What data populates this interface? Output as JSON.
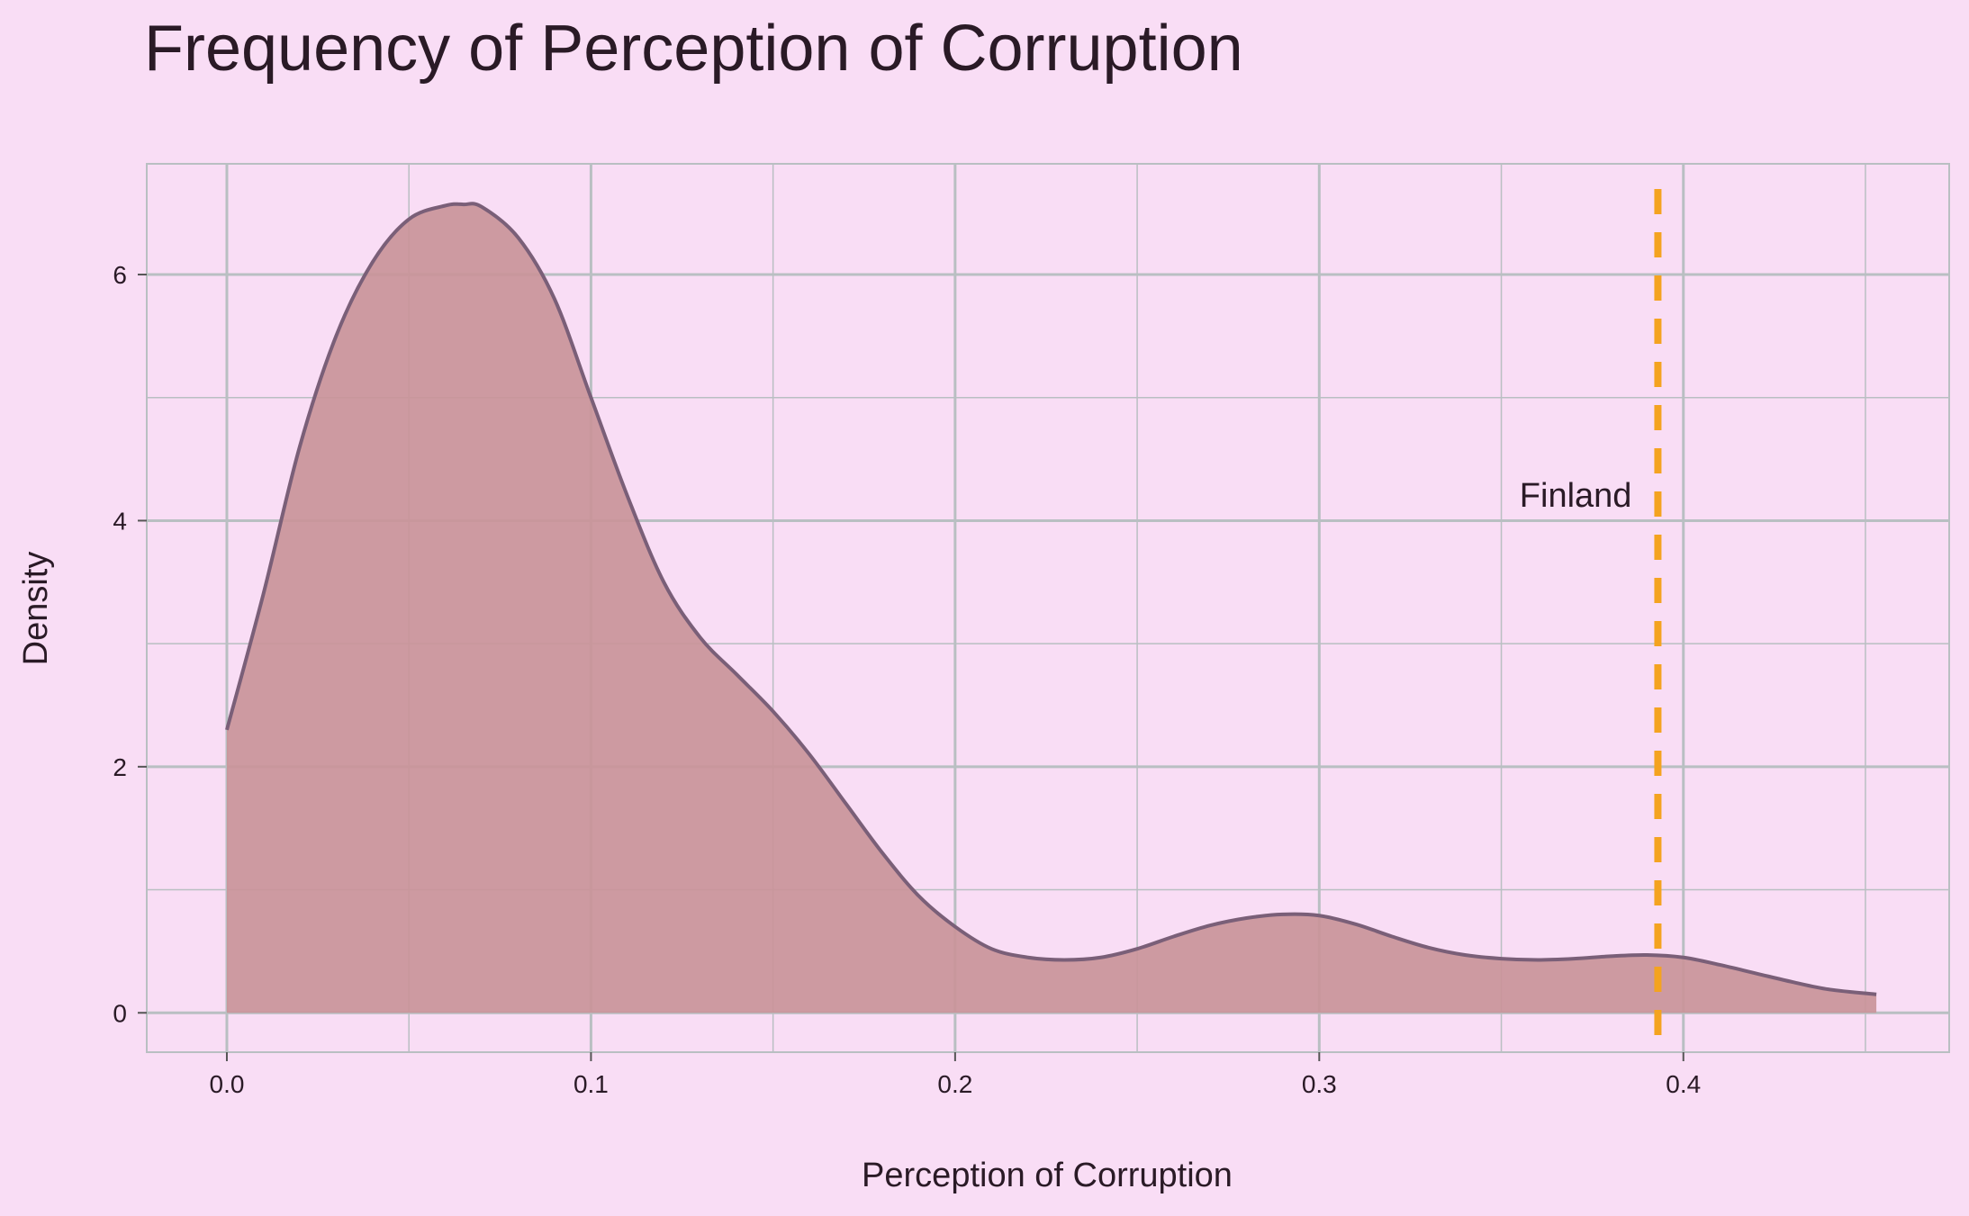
{
  "chart_data": {
    "type": "area",
    "title": "Frequency of Perception of Corruption",
    "xlabel": "Perception of Corruption",
    "ylabel": "Density",
    "xlim": [
      -0.022,
      0.473
    ],
    "ylim": [
      -0.32,
      6.9
    ],
    "x_ticks": [
      0.0,
      0.1,
      0.2,
      0.3,
      0.4
    ],
    "x_tick_labels": [
      "0.0",
      "0.1",
      "0.2",
      "0.3",
      "0.4"
    ],
    "y_ticks": [
      0,
      2,
      4,
      6
    ],
    "y_tick_labels": [
      "0",
      "2",
      "4",
      "6"
    ],
    "grid": true,
    "series": [
      {
        "x": [
          0.0,
          0.01,
          0.02,
          0.03,
          0.04,
          0.05,
          0.06,
          0.065,
          0.07,
          0.08,
          0.09,
          0.1,
          0.11,
          0.12,
          0.13,
          0.14,
          0.15,
          0.16,
          0.17,
          0.18,
          0.19,
          0.2,
          0.21,
          0.22,
          0.23,
          0.24,
          0.25,
          0.26,
          0.27,
          0.28,
          0.29,
          0.3,
          0.31,
          0.32,
          0.33,
          0.34,
          0.35,
          0.36,
          0.37,
          0.38,
          0.39,
          0.4,
          0.41,
          0.42,
          0.43,
          0.44,
          0.453
        ],
        "y": [
          2.3,
          3.4,
          4.6,
          5.5,
          6.1,
          6.45,
          6.56,
          6.57,
          6.55,
          6.3,
          5.8,
          5.0,
          4.2,
          3.5,
          3.05,
          2.75,
          2.45,
          2.1,
          1.7,
          1.3,
          0.95,
          0.7,
          0.52,
          0.45,
          0.43,
          0.45,
          0.52,
          0.62,
          0.71,
          0.77,
          0.8,
          0.79,
          0.72,
          0.62,
          0.53,
          0.47,
          0.44,
          0.43,
          0.44,
          0.46,
          0.47,
          0.45,
          0.39,
          0.32,
          0.25,
          0.19,
          0.15
        ]
      }
    ],
    "annotations": [
      {
        "label": "Finland",
        "x_line": 0.393,
        "label_y": 4.2
      }
    ],
    "colors": {
      "background": "#f9ddf5",
      "fill": "#c99499",
      "line": "#7a5f78",
      "grid": "#b9bfc2",
      "marker_line": "#f4a320"
    }
  }
}
